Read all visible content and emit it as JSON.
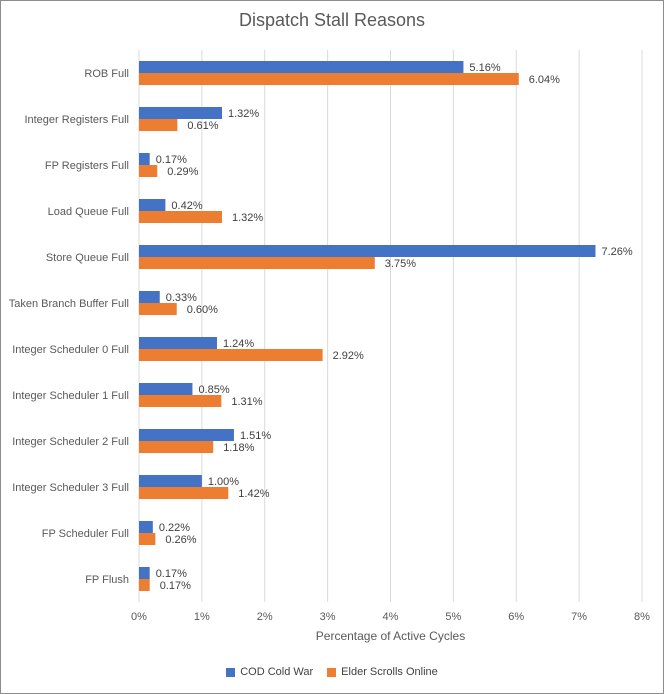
{
  "chart_data": {
    "type": "bar",
    "orientation": "horizontal",
    "title": "Dispatch Stall Reasons",
    "xlabel": "Percentage of Active Cycles",
    "ylabel": "",
    "xlim": [
      0,
      8
    ],
    "x_ticks": [
      "0%",
      "1%",
      "2%",
      "3%",
      "4%",
      "5%",
      "6%",
      "7%",
      "8%"
    ],
    "grid": "vertical",
    "legend": "bottom",
    "categories": [
      "ROB Full",
      "Integer Registers Full",
      "FP Registers Full",
      "Load Queue Full",
      "Store Queue Full",
      "Taken Branch Buffer Full",
      "Integer Scheduler 0 Full",
      "Integer Scheduler 1 Full",
      "Integer Scheduler 2 Full",
      "Integer Scheduler 3 Full",
      "FP Scheduler Full",
      "FP Flush"
    ],
    "series": [
      {
        "name": "COD Cold War",
        "color": "#4472c4",
        "values": [
          5.16,
          1.32,
          0.17,
          0.42,
          7.26,
          0.33,
          1.24,
          0.85,
          1.51,
          1.0,
          0.22,
          0.17
        ]
      },
      {
        "name": "Elder Scrolls Online",
        "color": "#ed7d31",
        "values": [
          6.04,
          0.61,
          0.29,
          1.32,
          3.75,
          0.6,
          2.92,
          1.31,
          1.18,
          1.42,
          0.26,
          0.17
        ]
      }
    ]
  }
}
